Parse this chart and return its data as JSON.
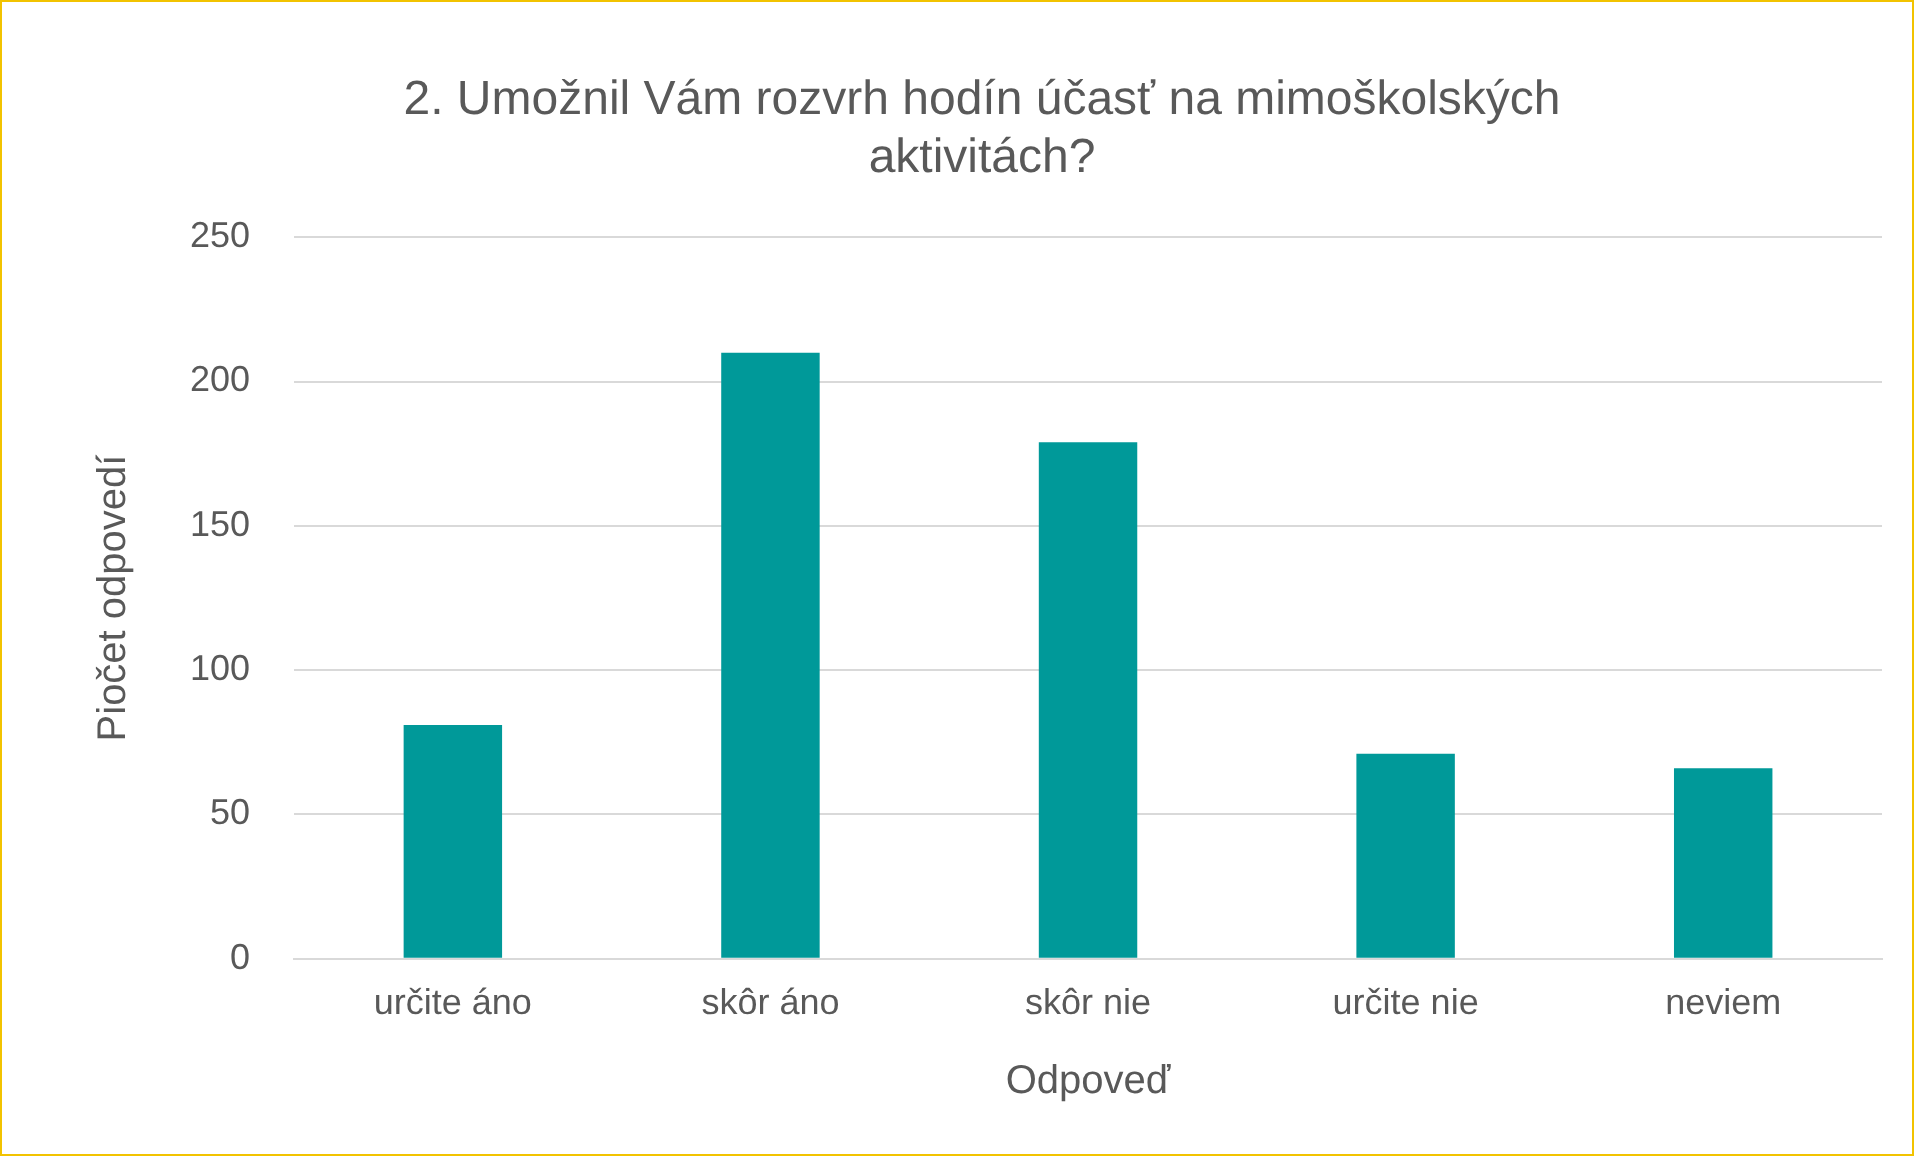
{
  "chart_data": {
    "type": "bar",
    "title": "2. Umožnil Vám rozvrh hodín účasť na mimoškolských aktivitách?",
    "xlabel": "Odpoveď",
    "ylabel": "Piočet odpovedí",
    "categories": [
      "určite áno",
      "skôr áno",
      "skôr nie",
      "určite nie",
      "neviem"
    ],
    "values": [
      81,
      210,
      179,
      71,
      66
    ],
    "color": "#009999",
    "ylim": [
      0,
      250
    ],
    "yticks": [
      0,
      50,
      100,
      150,
      200,
      250
    ],
    "grid": "y"
  }
}
